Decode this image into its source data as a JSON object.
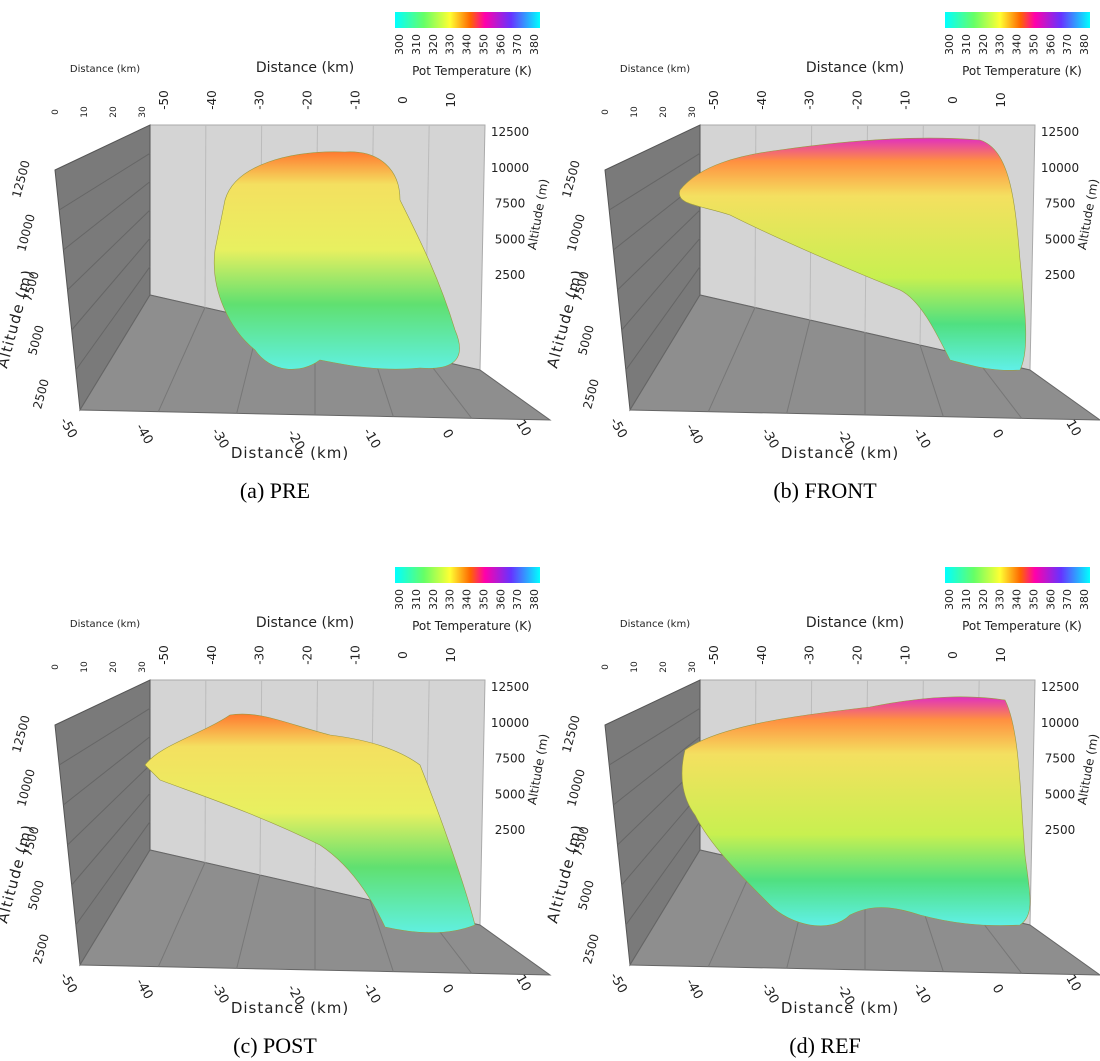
{
  "colorbar": {
    "label": "Pot Temperature (K)",
    "ticks": [
      300,
      310,
      320,
      330,
      340,
      350,
      360,
      370,
      380
    ]
  },
  "axes": {
    "distance_label": "Distance (km)",
    "altitude_label": "Altitude (m)",
    "distance_ticks": [
      -50,
      -40,
      -30,
      -20,
      -10,
      0,
      10
    ],
    "altitude_ticks": [
      2500,
      5000,
      7500,
      10000,
      12500
    ],
    "corner_ticks": [
      0,
      10,
      20,
      30
    ]
  },
  "panels": [
    {
      "caption": "(a) PRE"
    },
    {
      "caption": "(b) FRONT"
    },
    {
      "caption": "(c) POST"
    },
    {
      "caption": "(d) REF"
    }
  ]
}
